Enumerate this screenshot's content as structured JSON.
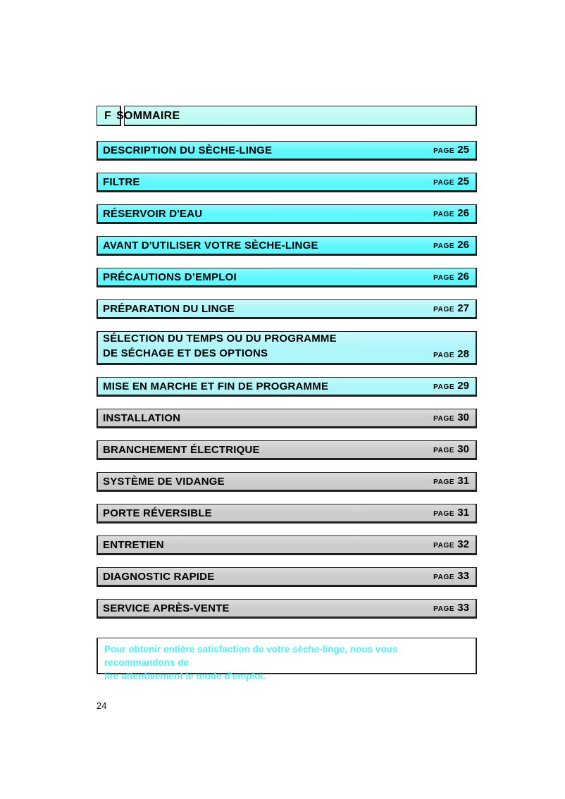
{
  "header": {
    "language_letter": "F",
    "title": "SOMMAIRE"
  },
  "toc": {
    "page_label": "PAGE",
    "items": [
      {
        "lines": [
          "DESCRIPTION DU SÈCHE-LINGE"
        ],
        "page": "25",
        "style": "cyan"
      },
      {
        "lines": [
          "FILTRE"
        ],
        "page": "25",
        "style": "cyan"
      },
      {
        "lines": [
          "RÉSERVOIR D'EAU"
        ],
        "page": "26",
        "style": "cyan"
      },
      {
        "lines": [
          "AVANT D'UTILISER VOTRE SÈCHE-LINGE"
        ],
        "page": "26",
        "style": "cyan"
      },
      {
        "lines": [
          "PRÉCAUTIONS D’EMPLOI"
        ],
        "page": "26",
        "style": "cyan"
      },
      {
        "lines": [
          "PRÉPARATION DU LINGE"
        ],
        "page": "27",
        "style": "cyan_light"
      },
      {
        "lines": [
          "SÉLECTION DU TEMPS OU DU PROGRAMME",
          "DE SÉCHAGE ET DES OPTIONS"
        ],
        "page": "28",
        "style": "cyan_light"
      },
      {
        "lines": [
          "MISE EN MARCHE ET FIN DE PROGRAMME"
        ],
        "page": "29",
        "style": "cyan_light"
      },
      {
        "lines": [
          "INSTALLATION"
        ],
        "page": "30",
        "style": "gray"
      },
      {
        "lines": [
          "BRANCHEMENT ÉLECTRIQUE"
        ],
        "page": "30",
        "style": "gray"
      },
      {
        "lines": [
          "SYSTÈME DE VIDANGE"
        ],
        "page": "31",
        "style": "gray"
      },
      {
        "lines": [
          "PORTE RÉVERSIBLE"
        ],
        "page": "31",
        "style": "gray"
      },
      {
        "lines": [
          "ENTRETIEN"
        ],
        "page": "32",
        "style": "gray"
      },
      {
        "lines": [
          "DIAGNOSTIC RAPIDE"
        ],
        "page": "33",
        "style": "gray"
      },
      {
        "lines": [
          "SERVICE APRÈS-VENTE"
        ],
        "page": "33",
        "style": "gray"
      }
    ]
  },
  "note": {
    "lines": [
      "Pour obtenir entière satisfaction de votre sèche-linge, nous vous recommandons de",
      "lire attentivement le mode d'emploi."
    ]
  },
  "footer": {
    "page_number": "24"
  },
  "colors": {
    "cyan": "#5FF7FF",
    "cyan_light": "#AEF6F9",
    "header_bg": "#BDFAF1",
    "gray": "#CCCCCC",
    "note_text": "#55EDF8"
  }
}
